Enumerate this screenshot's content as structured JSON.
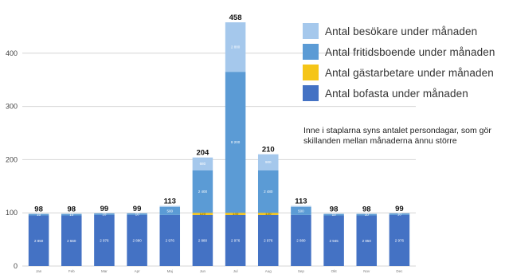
{
  "chart_data": {
    "type": "bar",
    "stacked": true,
    "title": "",
    "xlabel": "",
    "ylabel": "",
    "ylim": [
      0,
      470
    ],
    "yticks": [
      0,
      100,
      200,
      300,
      400
    ],
    "grid": true,
    "legend_position": "right",
    "categories": [
      "Jan",
      "Feb",
      "Mar",
      "Apr",
      "Maj",
      "Jun",
      "Jul",
      "Aug",
      "Sep",
      "Okt",
      "Nov",
      "Dec"
    ],
    "totals": [
      "98",
      "98",
      "99",
      "99",
      "113",
      "204",
      "458",
      "210",
      "113",
      "98",
      "98",
      "99"
    ],
    "series": [
      {
        "name": "Antal bofasta under månaden",
        "color": "#4472c4",
        "values": [
          95,
          95,
          96,
          96,
          96,
          96,
          96,
          96,
          96,
          95,
          95,
          96
        ],
        "labels": [
          "2 850",
          "2 660",
          "2 976",
          "2 880",
          "2 976",
          "2 880",
          "2 976",
          "2 976",
          "2 880",
          "2 945",
          "2 850",
          "2 976"
        ]
      },
      {
        "name": "Antal gästarbetare under månaden",
        "color": "#f5c518",
        "values": [
          0,
          0,
          0,
          0,
          0,
          4,
          4,
          4,
          0,
          0,
          0,
          0
        ],
        "labels": [
          "",
          "",
          "",
          "",
          "",
          "120",
          "140",
          "130",
          "",
          "",
          "",
          ""
        ]
      },
      {
        "name": "Antal fritidsboende under månaden",
        "color": "#5b9bd5",
        "values": [
          3,
          3,
          3,
          3,
          15,
          80,
          265,
          80,
          15,
          3,
          3,
          3
        ],
        "labels": [
          "10",
          "10",
          "10",
          "10",
          "500",
          "2 400",
          "8 200",
          "2 480",
          "500",
          "10",
          "10",
          "10"
        ]
      },
      {
        "name": "Antal besökare under månaden",
        "color": "#a5c8ec",
        "values": [
          0,
          0,
          0,
          0,
          2,
          24,
          93,
          30,
          2,
          0,
          0,
          0
        ],
        "labels": [
          "",
          "",
          "",
          "",
          "",
          "680",
          "2 880",
          "900",
          "",
          "",
          "",
          ""
        ]
      }
    ],
    "legend_order": [
      3,
      2,
      1,
      0
    ],
    "annotation": "Inne i staplarna syns antalet persondagar, som gör skillanden mellan månaderna ännu större"
  }
}
